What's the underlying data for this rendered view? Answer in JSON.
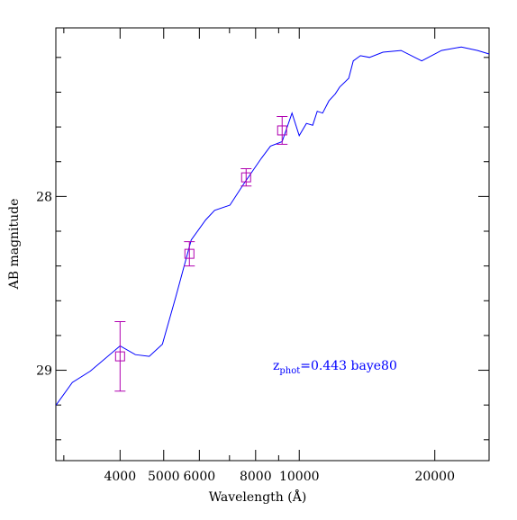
{
  "chart_data": {
    "type": "sed",
    "xlabel": "Wavelength (Å)",
    "ylabel": "AB magnitude",
    "annotation": {
      "main": "z",
      "sub": "phot",
      "rest": "=0.443 baye80",
      "color": "#0000ff"
    },
    "xscale": "log",
    "xlim": [
      2880,
      26400
    ],
    "ylim": [
      29.52,
      27.03
    ],
    "y_inverted": true,
    "xticks": [
      4000,
      5000,
      6000,
      8000,
      10000,
      20000
    ],
    "xminor": [
      3000,
      7000,
      9000
    ],
    "yticks": [
      28,
      29
    ],
    "yminor": [
      27.2,
      27.4,
      27.6,
      27.8,
      28.2,
      28.4,
      28.6,
      28.8,
      29.2,
      29.4
    ],
    "series": [
      {
        "kind": "line",
        "color": "#0000ff",
        "x": [
          2884,
          3133,
          3436,
          4000,
          4325,
          4643,
          4966,
          5321,
          5754,
          6194,
          6486,
          7015,
          7516,
          8241,
          8630,
          9162,
          9638,
          10000,
          10375,
          10715,
          10965,
          11272,
          11641,
          12023,
          12303,
          12882,
          13183,
          13677,
          14322,
          15346,
          16831,
          18707,
          20701,
          22909,
          24889,
          26400
        ],
        "values": [
          29.2,
          29.07,
          29.005,
          28.86,
          28.91,
          28.92,
          28.85,
          28.575,
          28.25,
          28.135,
          28.08,
          28.05,
          27.93,
          27.78,
          27.71,
          27.685,
          27.52,
          27.65,
          27.58,
          27.59,
          27.51,
          27.52,
          27.45,
          27.41,
          27.37,
          27.32,
          27.22,
          27.19,
          27.2,
          27.17,
          27.16,
          27.22,
          27.16,
          27.14,
          27.16,
          27.18
        ]
      },
      {
        "kind": "points",
        "color": "#b000b0",
        "x": [
          4000,
          5702,
          7621,
          9162
        ],
        "values": [
          28.92,
          28.33,
          27.89,
          27.62
        ],
        "errors": [
          0.2,
          0.07,
          0.05,
          0.08
        ]
      }
    ]
  }
}
